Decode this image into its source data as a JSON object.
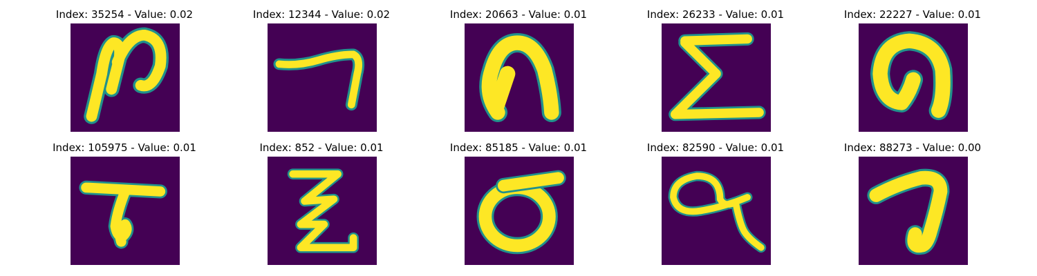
{
  "figure": {
    "background_color": "#440154",
    "foreground_color": "#fde725",
    "edge_color": "#21918c",
    "panels": [
      {
        "title": "Index: 35254 - Value: 0.02",
        "index": 35254,
        "value": 0.02
      },
      {
        "title": "Index: 12344 - Value: 0.02",
        "index": 12344,
        "value": 0.02
      },
      {
        "title": "Index: 20663 - Value: 0.01",
        "index": 20663,
        "value": 0.01
      },
      {
        "title": "Index: 26233 - Value: 0.01",
        "index": 26233,
        "value": 0.01
      },
      {
        "title": "Index: 22227 - Value: 0.01",
        "index": 22227,
        "value": 0.01
      },
      {
        "title": "Index: 105975 - Value: 0.01",
        "index": 105975,
        "value": 0.01
      },
      {
        "title": "Index: 852 - Value: 0.01",
        "index": 852,
        "value": 0.01
      },
      {
        "title": "Index: 85185 - Value: 0.01",
        "index": 85185,
        "value": 0.01
      },
      {
        "title": "Index: 82590 - Value: 0.01",
        "index": 82590,
        "value": 0.01
      },
      {
        "title": "Index: 88273 - Value: 0.00",
        "index": 88273,
        "value": 0.0
      }
    ]
  }
}
